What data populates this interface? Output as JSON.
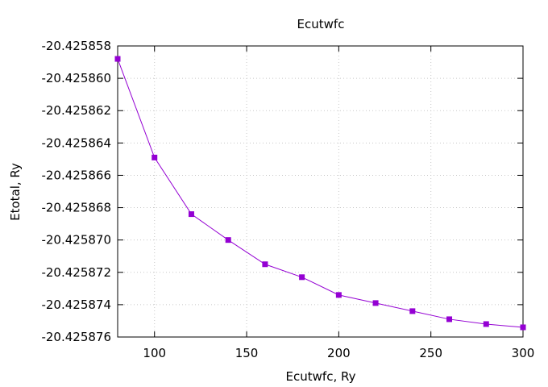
{
  "chart_data": {
    "type": "line",
    "title": "Ecutwfc",
    "xlabel": "Ecutwfc, Ry",
    "ylabel": "Etotal, Ry",
    "xlim": [
      80,
      300
    ],
    "ylim": [
      -20.425876,
      -20.425858
    ],
    "xticks": [
      100,
      150,
      200,
      250,
      300
    ],
    "xtick_labels": [
      "100",
      "150",
      "200",
      "250",
      "300"
    ],
    "yticks": [
      -20.425858,
      -20.42586,
      -20.425862,
      -20.425864,
      -20.425866,
      -20.425868,
      -20.42587,
      -20.425872,
      -20.425874,
      -20.425876
    ],
    "ytick_labels": [
      "-20.425858",
      "-20.425860",
      "-20.425862",
      "-20.425864",
      "-20.425866",
      "-20.425868",
      "-20.425870",
      "-20.425872",
      "-20.425874",
      "-20.425876"
    ],
    "grid": true,
    "legend": false,
    "series": [
      {
        "color": "#9400d3",
        "marker": "square",
        "x": [
          80,
          100,
          120,
          140,
          160,
          180,
          200,
          220,
          240,
          260,
          280,
          300
        ],
        "y": [
          -20.4258588,
          -20.4258649,
          -20.4258684,
          -20.42587,
          -20.4258715,
          -20.4258723,
          -20.4258734,
          -20.4258739,
          -20.4258744,
          -20.4258749,
          -20.4258752,
          -20.4258754
        ]
      }
    ]
  }
}
